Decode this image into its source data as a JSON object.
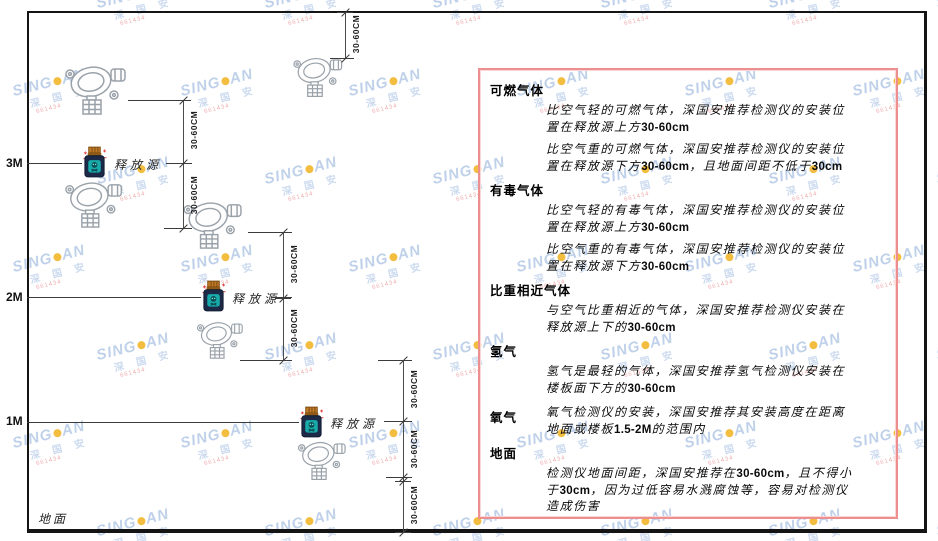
{
  "colors": {
    "panel_border": "#ee8f8f",
    "watermark_blue": "#b9cde7",
    "watermark_dot_yellow": "#f2b62c",
    "watermark_red": "#eba4a4",
    "detector_outline_grey": "#99a1a9",
    "source_body_navy": "#1c2a47",
    "source_cap_orange": "#c07a28",
    "source_label_teal": "#19aaaa",
    "sparkle_red": "#e24444",
    "line_black": "#141414"
  },
  "watermark": {
    "brand_left": "SING",
    "brand_right": "AN",
    "subtext": "深 国 安",
    "fineprint": "661434"
  },
  "diagram": {
    "height_labels": [
      {
        "label": "3M"
      },
      {
        "label": "2M"
      },
      {
        "label": "1M"
      }
    ],
    "ground_label": "地面",
    "release_source_label": "释放源",
    "dim_label": "30-60CM",
    "icons": {
      "detector": "gas-detector-icon",
      "release_source": "gas-bottle-release-source-icon"
    }
  },
  "panel": {
    "sections": [
      {
        "heading": "可燃气体",
        "inline": false,
        "paras": [
          [
            {
              "t": "比空气轻的可燃气体，深国安推荐检测仪的安装位置在释放源上方"
            },
            {
              "t": "30-60cm",
              "b": true
            }
          ],
          [
            {
              "t": "比空气重的可燃气体，深国安推荐检测仪的安装位置在释放源下方"
            },
            {
              "t": "30-60cm",
              "b": true
            },
            {
              "t": "，且地面间距不低于"
            },
            {
              "t": "30cm",
              "b": true
            }
          ]
        ]
      },
      {
        "heading": "有毒气体",
        "inline": false,
        "paras": [
          [
            {
              "t": "比空气轻的有毒气体，深国安推荐检测仪的安装位置在释放源上方"
            },
            {
              "t": "30-60cm",
              "b": true
            }
          ],
          [
            {
              "t": "比空气重的有毒气体，深国安推荐检测仪的安装位置在释放源下方"
            },
            {
              "t": "30-60cm",
              "b": true
            }
          ]
        ]
      },
      {
        "heading": "比重相近气体",
        "inline": false,
        "paras": [
          [
            {
              "t": "与空气比重相近的气体，深国安推荐检测仪安装在释放源上下的"
            },
            {
              "t": "30-60cm",
              "b": true
            }
          ]
        ]
      },
      {
        "heading": "氢气",
        "inline": false,
        "paras": [
          [
            {
              "t": "氢气是最轻的气体，深国安推荐氢气检测仪安装在楼板面下方的"
            },
            {
              "t": "30-60cm",
              "b": true
            }
          ]
        ]
      },
      {
        "heading": "氧气",
        "inline": true,
        "paras": [
          [
            {
              "t": "氧气检测仪的安装，深国安推荐其安装高度在距离地面或楼板"
            },
            {
              "t": "1.5-2M",
              "b": true
            },
            {
              "t": "的范围内"
            }
          ]
        ]
      },
      {
        "heading": "地面",
        "inline": false,
        "paras": [
          [
            {
              "t": "检测仪地面间距，深国安推荐在"
            },
            {
              "t": "30-60cm",
              "b": true
            },
            {
              "t": "，且不得小于"
            },
            {
              "t": "30cm",
              "b": true
            },
            {
              "t": "，因为过低容易水溅腐蚀等，容易对检测仪造成伤害"
            }
          ]
        ]
      }
    ]
  }
}
